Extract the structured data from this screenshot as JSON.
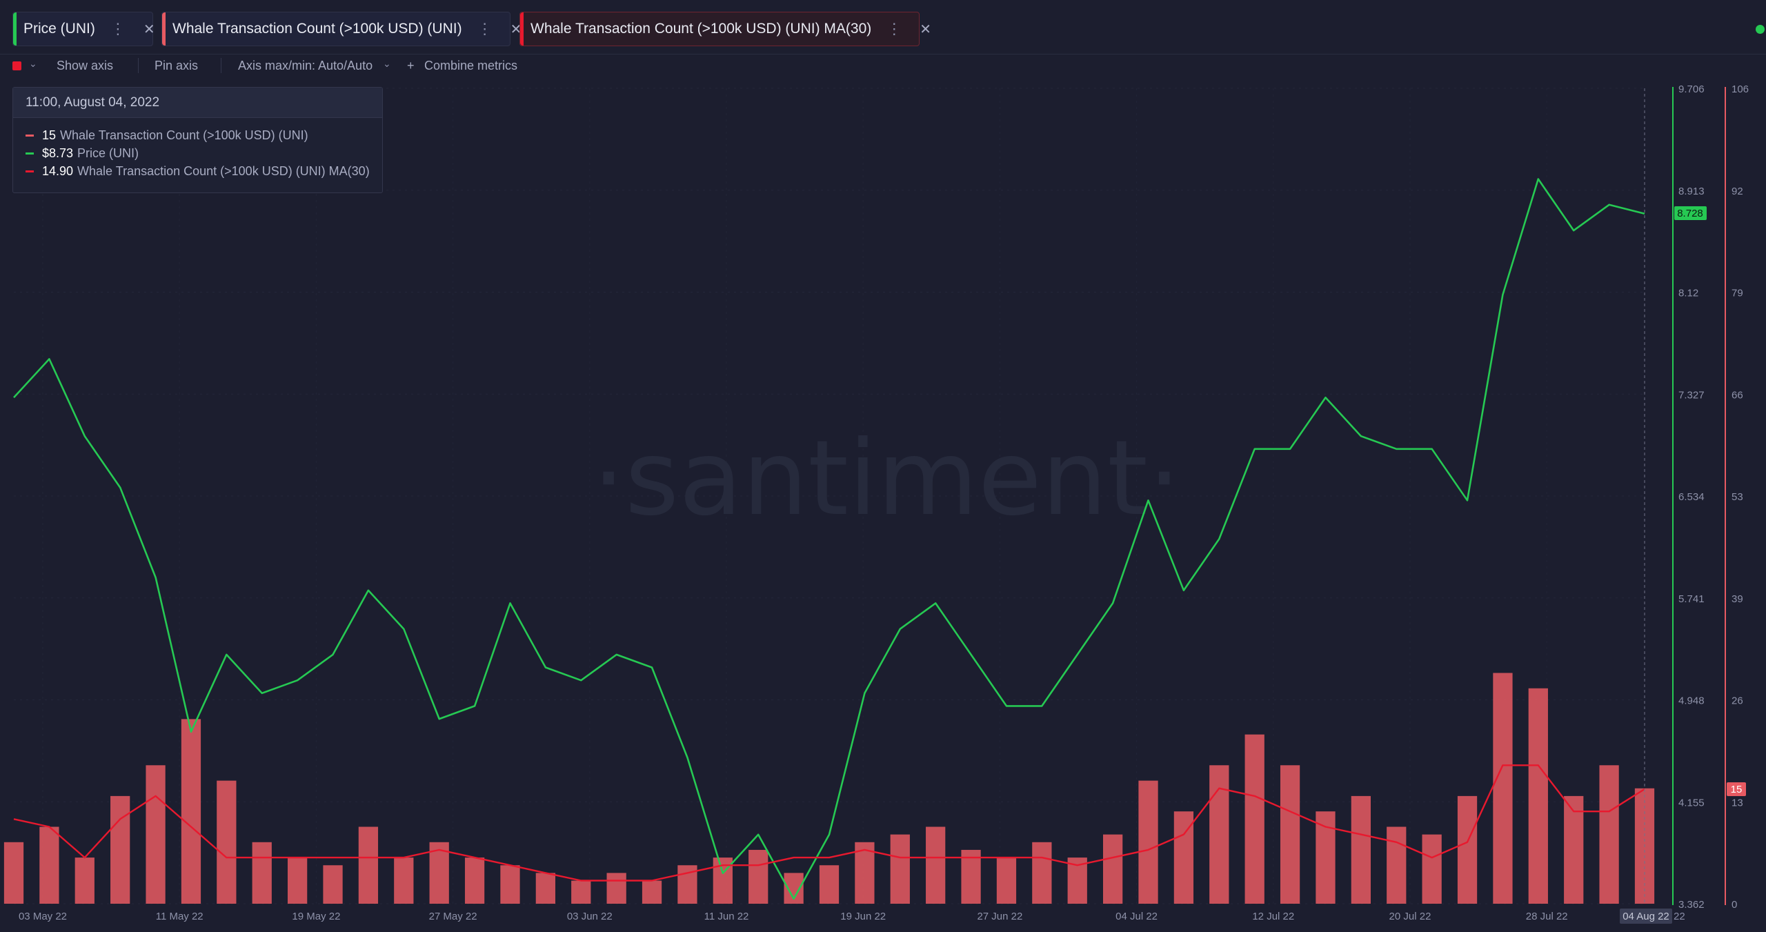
{
  "tabs": [
    {
      "label": "Price (UNI)",
      "color": "#26c953"
    },
    {
      "label": "Whale Transaction Count (>100k USD) (UNI)",
      "color": "#e85a62"
    },
    {
      "label": "Whale Transaction Count (>100k USD) (UNI) MA(30)",
      "color": "#e8192e"
    }
  ],
  "toolbar": {
    "show_axis": "Show axis",
    "pin_axis": "Pin axis",
    "axis_maxmin": "Axis max/min: Auto/Auto",
    "combine": "Combine metrics",
    "add_icon": "+"
  },
  "tooltip": {
    "date": "11:00, August 04, 2022",
    "rows": [
      {
        "value": "15",
        "label": "Whale Transaction Count (>100k USD) (UNI)",
        "color": "#e85a62"
      },
      {
        "value": "$8.73",
        "label": "Price (UNI)",
        "color": "#26c953"
      },
      {
        "value": "14.90",
        "label": "Whale Transaction Count (>100k USD) (UNI) MA(30)",
        "color": "#e8192e"
      }
    ]
  },
  "watermark": "·santiment·",
  "chart_data": {
    "type": "line",
    "x_tick_labels": [
      "03 May 22",
      "11 May 22",
      "19 May 22",
      "27 May 22",
      "03 Jun 22",
      "11 Jun 22",
      "19 Jun 22",
      "27 Jun 22",
      "04 Jul 22",
      "12 Jul 22",
      "20 Jul 22",
      "28 Jul 22"
    ],
    "current_x_label": "04 Aug 22",
    "x_tail_label": "22",
    "price_axis": {
      "ticks": [
        "9.706",
        "8.913",
        "8.12",
        "7.327",
        "6.534",
        "5.741",
        "4.948",
        "4.155",
        "3.362"
      ],
      "min": 3.362,
      "max": 9.706,
      "current": "8.728",
      "color": "#26c953"
    },
    "count_axis": {
      "ticks": [
        "106",
        "92",
        "79",
        "66",
        "53",
        "39",
        "26",
        "13",
        "0"
      ],
      "min": 0,
      "max": 106,
      "current": "15",
      "color": "#e85a62"
    },
    "series": [
      {
        "name": "Price (UNI)",
        "type": "line",
        "color": "#26c953",
        "dates": [
          "03 May 22",
          "05 May 22",
          "07 May 22",
          "09 May 22",
          "11 May 22",
          "13 May 22",
          "15 May 22",
          "17 May 22",
          "19 May 22",
          "21 May 22",
          "23 May 22",
          "25 May 22",
          "27 May 22",
          "29 May 22",
          "31 May 22",
          "03 Jun 22",
          "05 Jun 22",
          "07 Jun 22",
          "09 Jun 22",
          "11 Jun 22",
          "13 Jun 22",
          "15 Jun 22",
          "17 Jun 22",
          "19 Jun 22",
          "21 Jun 22",
          "23 Jun 22",
          "25 Jun 22",
          "27 Jun 22",
          "29 Jun 22",
          "01 Jul 22",
          "04 Jul 22",
          "06 Jul 22",
          "08 Jul 22",
          "10 Jul 22",
          "12 Jul 22",
          "14 Jul 22",
          "16 Jul 22",
          "18 Jul 22",
          "20 Jul 22",
          "22 Jul 22",
          "24 Jul 22",
          "26 Jul 22",
          "28 Jul 22",
          "30 Jul 22",
          "01 Aug 22",
          "03 Aug 22",
          "04 Aug 22"
        ],
        "values": [
          7.3,
          7.6,
          7.0,
          6.6,
          5.9,
          4.7,
          5.3,
          5.0,
          5.1,
          5.3,
          5.8,
          5.5,
          4.8,
          4.9,
          5.7,
          5.2,
          5.1,
          5.3,
          5.2,
          4.5,
          3.6,
          3.9,
          3.4,
          3.9,
          5.0,
          5.5,
          5.7,
          5.3,
          4.9,
          4.9,
          5.3,
          5.7,
          6.5,
          5.8,
          6.2,
          6.9,
          6.9,
          7.3,
          7.0,
          6.9,
          6.9,
          6.5,
          8.1,
          9.0,
          8.6,
          8.8,
          8.73
        ]
      },
      {
        "name": "Whale Transaction Count (>100k USD) (UNI)",
        "type": "bar",
        "color": "#e85a62",
        "dates": [
          "03 May 22",
          "05 May 22",
          "07 May 22",
          "09 May 22",
          "11 May 22",
          "13 May 22",
          "15 May 22",
          "17 May 22",
          "19 May 22",
          "21 May 22",
          "23 May 22",
          "25 May 22",
          "27 May 22",
          "29 May 22",
          "31 May 22",
          "03 Jun 22",
          "05 Jun 22",
          "07 Jun 22",
          "09 Jun 22",
          "11 Jun 22",
          "13 Jun 22",
          "15 Jun 22",
          "17 Jun 22",
          "19 Jun 22",
          "21 Jun 22",
          "23 Jun 22",
          "25 Jun 22",
          "27 Jun 22",
          "29 Jun 22",
          "01 Jul 22",
          "04 Jul 22",
          "06 Jul 22",
          "08 Jul 22",
          "10 Jul 22",
          "12 Jul 22",
          "14 Jul 22",
          "16 Jul 22",
          "18 Jul 22",
          "20 Jul 22",
          "22 Jul 22",
          "24 Jul 22",
          "26 Jul 22",
          "28 Jul 22",
          "30 Jul 22",
          "01 Aug 22",
          "03 Aug 22",
          "04 Aug 22"
        ],
        "values": [
          8,
          10,
          6,
          14,
          18,
          24,
          16,
          8,
          6,
          5,
          10,
          6,
          8,
          6,
          5,
          4,
          3,
          4,
          3,
          5,
          6,
          7,
          4,
          5,
          8,
          9,
          10,
          7,
          6,
          8,
          6,
          9,
          16,
          12,
          18,
          22,
          18,
          12,
          14,
          10,
          9,
          14,
          30,
          28,
          14,
          18,
          15
        ]
      },
      {
        "name": "Whale Transaction Count (>100k USD) (UNI) MA(30)",
        "type": "line",
        "color": "#e8192e",
        "dates": [
          "03 May 22",
          "05 May 22",
          "07 May 22",
          "09 May 22",
          "11 May 22",
          "13 May 22",
          "15 May 22",
          "17 May 22",
          "19 May 22",
          "21 May 22",
          "23 May 22",
          "25 May 22",
          "27 May 22",
          "29 May 22",
          "31 May 22",
          "03 Jun 22",
          "05 Jun 22",
          "07 Jun 22",
          "09 Jun 22",
          "11 Jun 22",
          "13 Jun 22",
          "15 Jun 22",
          "17 Jun 22",
          "19 Jun 22",
          "21 Jun 22",
          "23 Jun 22",
          "25 Jun 22",
          "27 Jun 22",
          "29 Jun 22",
          "01 Jul 22",
          "04 Jul 22",
          "06 Jul 22",
          "08 Jul 22",
          "10 Jul 22",
          "12 Jul 22",
          "14 Jul 22",
          "16 Jul 22",
          "18 Jul 22",
          "20 Jul 22",
          "22 Jul 22",
          "24 Jul 22",
          "26 Jul 22",
          "28 Jul 22",
          "30 Jul 22",
          "01 Aug 22",
          "03 Aug 22",
          "04 Aug 22"
        ],
        "values": [
          11,
          10,
          6,
          11,
          14,
          10,
          6,
          6,
          6,
          6,
          6,
          6,
          7,
          6,
          5,
          4,
          3,
          3,
          3,
          4,
          5,
          5,
          6,
          6,
          7,
          6,
          6,
          6,
          6,
          6,
          5,
          6,
          7,
          9,
          15,
          14,
          12,
          10,
          9,
          8,
          6,
          8,
          18,
          18,
          12,
          12,
          14.9
        ]
      }
    ]
  }
}
